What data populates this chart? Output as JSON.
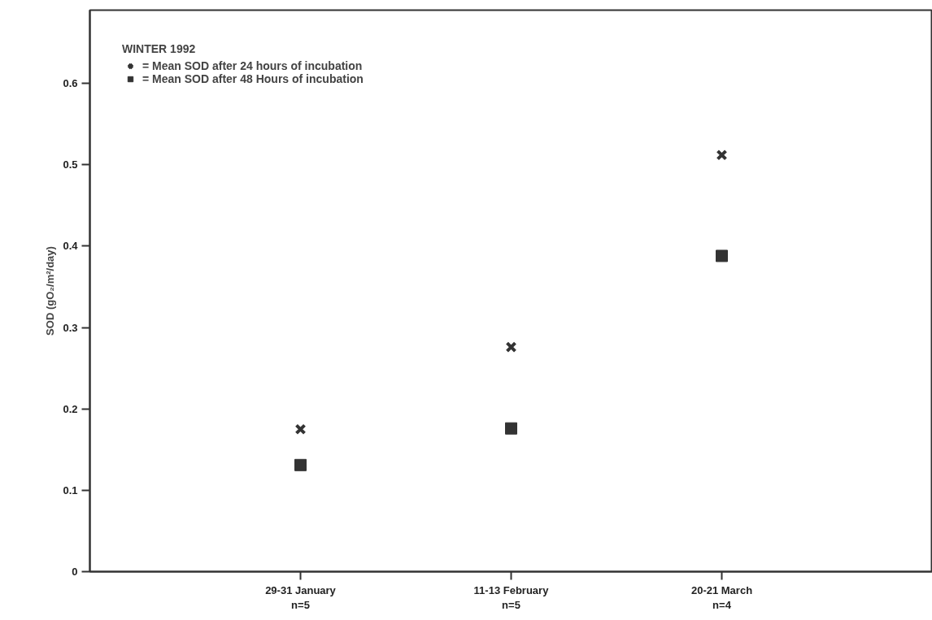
{
  "chart_data": {
    "type": "scatter",
    "ylabel": "SOD (gO₂/m²/day)",
    "legend_title": "WINTER 1992",
    "categories": [
      "29-31 January\nn=5",
      "11-13 February\nn=5",
      "20-21 March\nn=4"
    ],
    "series": [
      {
        "name": "= Mean SOD after 24 hours of incubation",
        "color": "#333333",
        "marker": "x",
        "values": [
          0.175,
          0.276,
          0.512
        ]
      },
      {
        "name": "= Mean SOD after 48 Hours of incubation",
        "color": "#333333",
        "marker": "square",
        "values": [
          0.131,
          0.176,
          0.388
        ]
      }
    ],
    "ylim": [
      0,
      0.69
    ],
    "yticks": [
      0,
      0.1,
      0.2,
      0.3,
      0.4,
      0.5,
      0.6
    ],
    "grid": false,
    "legend": "top left"
  }
}
